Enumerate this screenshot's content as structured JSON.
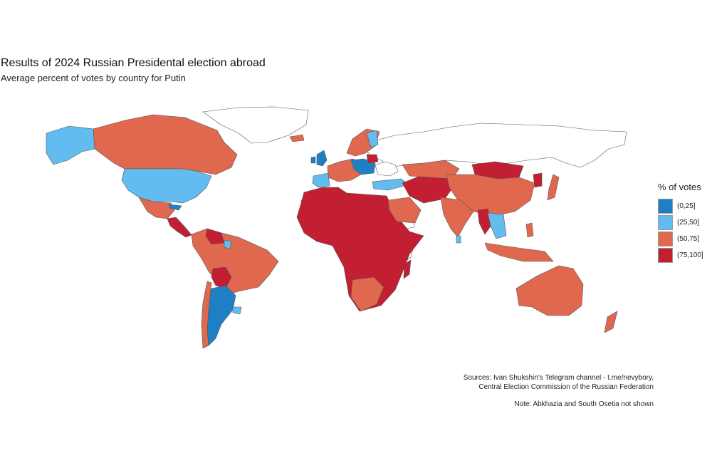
{
  "title": "Results of 2024 Russian Presidental election abroad",
  "subtitle": "Average percent of votes by country for Putin",
  "legend": {
    "title": "% of votes",
    "items": [
      {
        "label": "(0,25]",
        "color": "#1f7fc4"
      },
      {
        "label": "(25,50]",
        "color": "#62bcef"
      },
      {
        "label": "(50,75]",
        "color": "#e0684f"
      },
      {
        "label": "(75,100]",
        "color": "#c21f33"
      }
    ]
  },
  "colors": {
    "no_data": "#ffffff",
    "border": "#555555",
    "background": "#ffffff"
  },
  "sources": {
    "line1": "Sources: Ivan Shukshin's Telegram channel - t.me/nevybory,",
    "line2": "Central Election Commission of the Russian Federation"
  },
  "note": "Note: Abkhazia and South Osetia not shown"
}
